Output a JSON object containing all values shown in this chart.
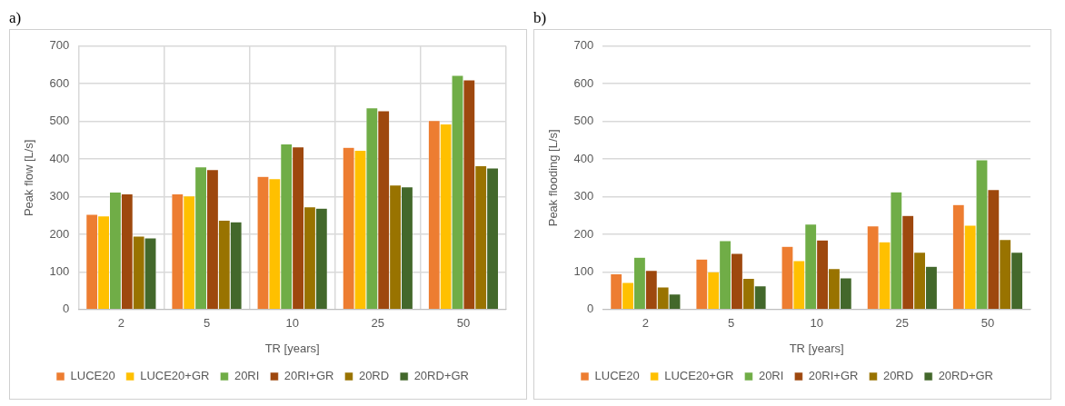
{
  "chart_data": [
    {
      "type": "bar",
      "title": "a)",
      "xlabel": "TR [years]",
      "ylabel": "Peak flow [L/s]",
      "categories": [
        "2",
        "5",
        "10",
        "25",
        "50"
      ],
      "ylim": [
        0,
        700
      ],
      "yticks": [
        0,
        100,
        200,
        300,
        400,
        500,
        600,
        700
      ],
      "grid": true,
      "legend": "bottom",
      "series": [
        {
          "name": "LUCE20",
          "color": "#ed7d31",
          "values": [
            253,
            307,
            354,
            431,
            502
          ]
        },
        {
          "name": "LUCE20+GR",
          "color": "#ffc000",
          "values": [
            249,
            302,
            348,
            423,
            493
          ]
        },
        {
          "name": "20RI",
          "color": "#70ad47",
          "values": [
            312,
            379,
            440,
            536,
            622
          ]
        },
        {
          "name": "20RI+GR",
          "color": "#9e480e",
          "values": [
            307,
            372,
            432,
            528,
            610
          ]
        },
        {
          "name": "20RD",
          "color": "#997300",
          "values": [
            195,
            237,
            273,
            331,
            382
          ]
        },
        {
          "name": "20RD+GR",
          "color": "#43682b",
          "values": [
            190,
            233,
            269,
            326,
            376
          ]
        }
      ]
    },
    {
      "type": "bar",
      "title": "b)",
      "xlabel": "TR [years]",
      "ylabel": "Peak flooding [L/s]",
      "categories": [
        "2",
        "5",
        "10",
        "25",
        "50"
      ],
      "ylim": [
        0,
        700
      ],
      "yticks": [
        0,
        100,
        200,
        300,
        400,
        500,
        600,
        700
      ],
      "grid": "y",
      "legend": "bottom",
      "series": [
        {
          "name": "LUCE20",
          "color": "#ed7d31",
          "values": [
            95,
            134,
            168,
            222,
            279
          ]
        },
        {
          "name": "LUCE20+GR",
          "color": "#ffc000",
          "values": [
            72,
            100,
            130,
            180,
            224
          ]
        },
        {
          "name": "20RI",
          "color": "#70ad47",
          "values": [
            139,
            183,
            227,
            313,
            398
          ]
        },
        {
          "name": "20RI+GR",
          "color": "#9e480e",
          "values": [
            104,
            149,
            185,
            250,
            319
          ]
        },
        {
          "name": "20RD",
          "color": "#997300",
          "values": [
            60,
            83,
            109,
            152,
            186
          ]
        },
        {
          "name": "20RD+GR",
          "color": "#43682b",
          "values": [
            41,
            63,
            84,
            115,
            152
          ]
        }
      ]
    }
  ]
}
